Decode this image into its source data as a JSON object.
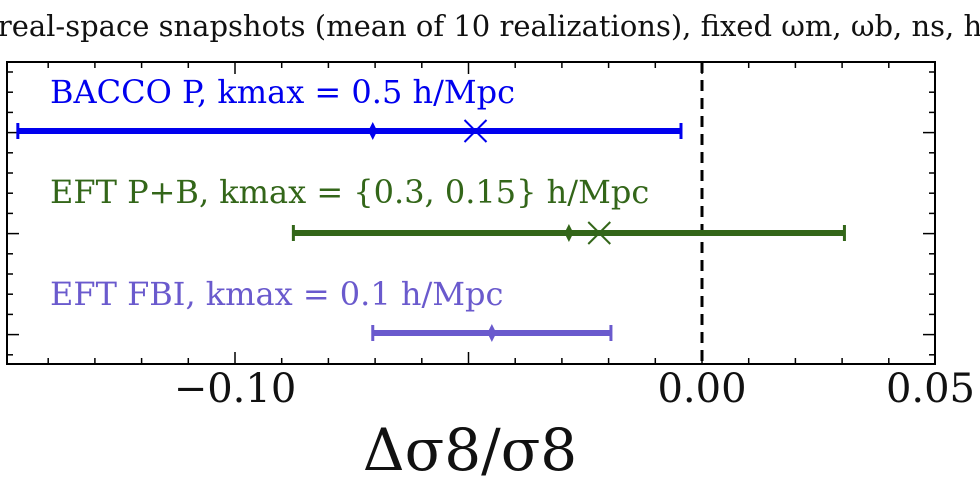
{
  "chart_data": {
    "type": "errorbar",
    "title": "real-space snapshots (mean of 10 realizations), fixed ωm, ωb, ns, h",
    "xlabel": "Δσ8/σ8",
    "xlim": [
      -0.148,
      0.05
    ],
    "xticks": [
      {
        "value": -0.1,
        "label": "−0.10"
      },
      {
        "value": 0.0,
        "label": "0.00"
      },
      {
        "value": 0.05,
        "label": "0.05"
      }
    ],
    "reference_line": 0.0,
    "series": [
      {
        "name": "BACCO P, kmax = 0.5 h/Mpc",
        "color": "#0000ee",
        "low": -0.1465,
        "high": -0.0045,
        "mean": -0.0705,
        "best_fit": -0.0485
      },
      {
        "name": "EFT P+B, kmax = {0.3, 0.15} h/Mpc",
        "color": "#336619",
        "low": -0.0875,
        "high": 0.0305,
        "mean": -0.0285,
        "best_fit": -0.022
      },
      {
        "name": "EFT FBI, kmax = 0.1 h/Mpc",
        "color": "#6a5acd",
        "low": -0.0705,
        "high": -0.0195,
        "mean": -0.045,
        "best_fit": null
      }
    ]
  }
}
